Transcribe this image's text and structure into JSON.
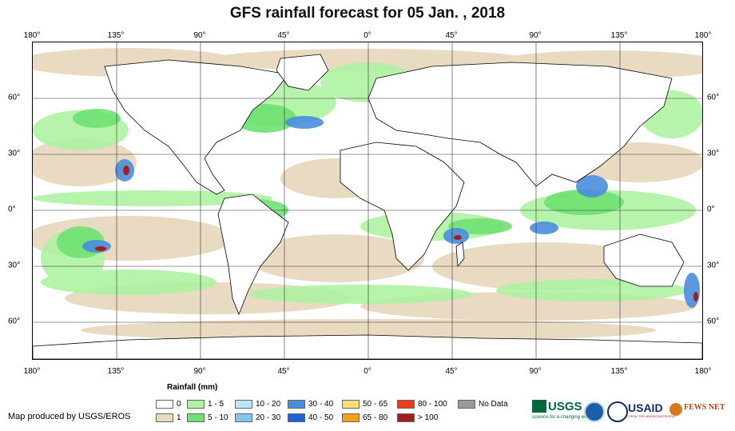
{
  "title": "GFS rainfall forecast for 05 Jan. , 2018",
  "longitude_ticks": [
    "180°",
    "135°",
    "90°",
    "45°",
    "0°",
    "45°",
    "90°",
    "135°",
    "180°"
  ],
  "latitude_ticks": [
    "60°",
    "30°",
    "0°",
    "30°",
    "60°"
  ],
  "legend": {
    "title": "Rainfall (mm)",
    "items": [
      {
        "label": "0",
        "color": "#ffffff"
      },
      {
        "label": "1",
        "color": "#e8d9bf"
      },
      {
        "label": "1 - 5",
        "color": "#aff2a3"
      },
      {
        "label": "5 - 10",
        "color": "#6fe173"
      },
      {
        "label": "10 - 20",
        "color": "#b9e8f7"
      },
      {
        "label": "20 - 30",
        "color": "#82c6ee"
      },
      {
        "label": "30 - 40",
        "color": "#4a8ddc"
      },
      {
        "label": "40 - 50",
        "color": "#2060d8"
      },
      {
        "label": "50 - 65",
        "color": "#f7df7e"
      },
      {
        "label": "65 - 80",
        "color": "#f5a11c"
      },
      {
        "label": "80 - 100",
        "color": "#ee3b1a"
      },
      {
        "label": "> 100",
        "color": "#a31e1e"
      },
      {
        "label": "No Data",
        "color": "#999999"
      }
    ]
  },
  "credit": "Map produced by USGS/EROS",
  "logos": {
    "usgs": "USGS",
    "usgs_tagline": "science for a changing world",
    "usaid": "USAID",
    "usaid_tagline": "FROM THE AMERICAN PEOPLE",
    "fewsnet": "FEWS NET"
  },
  "colors": {
    "dry": "#e8d9bf",
    "light": "#aff2a3",
    "moderate": "#6fe173",
    "heavy": "#4a8ddc",
    "extreme": "#a31e1e"
  }
}
